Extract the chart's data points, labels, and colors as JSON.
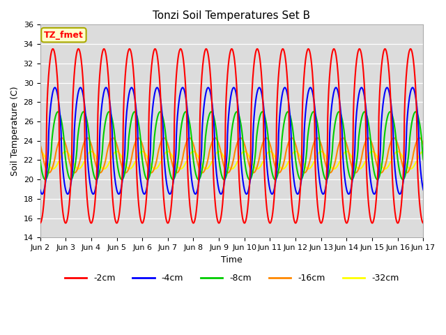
{
  "title": "Tonzi Soil Temperatures Set B",
  "xlabel": "Time",
  "ylabel": "Soil Temperature (C)",
  "ylim": [
    14,
    36
  ],
  "xlim": [
    0,
    15
  ],
  "xtick_labels": [
    "Jun 2",
    "Jun 3",
    "Jun 4",
    "Jun 5",
    "Jun 6",
    "Jun 7",
    "Jun 8",
    "Jun 9",
    "Jun 10",
    "Jun 11",
    "Jun 12",
    "Jun 13",
    "Jun 14",
    "Jun 15",
    "Jun 16",
    "Jun 17"
  ],
  "ytick_values": [
    14,
    16,
    18,
    20,
    22,
    24,
    26,
    28,
    30,
    32,
    34,
    36
  ],
  "colors": {
    "-2cm": "#ff0000",
    "-4cm": "#0000ff",
    "-8cm": "#00cc00",
    "-16cm": "#ff8800",
    "-32cm": "#ffff00"
  },
  "legend_label": "TZ_fmet",
  "bg_color": "#dcdcdc",
  "annotation_box_facecolor": "#ffffcc",
  "annotation_box_edgecolor": "#aaaa00",
  "n_points": 1500,
  "period_days": 1.0,
  "mean_2cm": 24.5,
  "mean_4cm": 24.0,
  "mean_8cm": 23.5,
  "mean_16cm": 22.5,
  "mean_32cm": 22.0,
  "amp_2cm": 9.0,
  "amp_4cm": 5.5,
  "amp_8cm": 3.5,
  "amp_16cm": 1.8,
  "amp_32cm": 0.9,
  "phase_2cm": 0.0,
  "phase_4cm": 0.08,
  "phase_8cm": 0.2,
  "phase_16cm": 0.35,
  "phase_32cm": 0.5,
  "skew_2cm": 3.0,
  "skew_4cm": 2.0,
  "skew_8cm": 1.2,
  "skew_16cm": 0.5,
  "skew_32cm": 0.2
}
